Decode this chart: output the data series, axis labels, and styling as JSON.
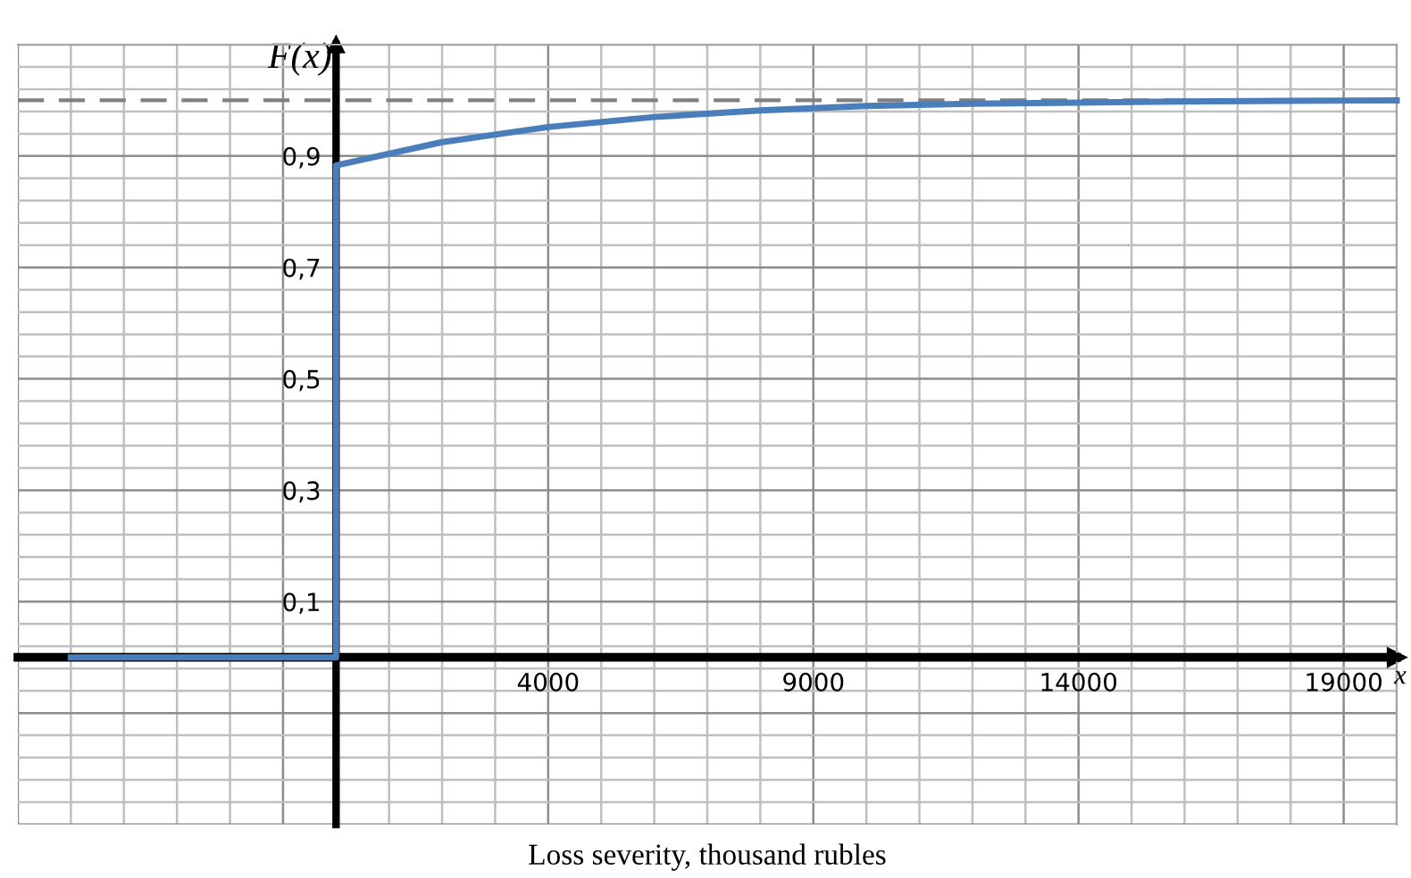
{
  "chart_data": {
    "type": "line",
    "ylabel": "F(x)",
    "xlabel": "Loss severity, thousand rubles",
    "annotations": [
      "x"
    ],
    "series": [
      {
        "color": "#4a7ebb",
        "x": [
          -5000,
          0,
          0,
          2000,
          4000,
          6000,
          8000,
          10000,
          12000,
          14000,
          16000,
          18000,
          20000
        ],
        "values": [
          0,
          0,
          0.883,
          0.925,
          0.952,
          0.97,
          0.982,
          0.99,
          0.994,
          0.996,
          0.998,
          0.999,
          1.0
        ]
      }
    ],
    "xlim": [
      -6000,
      20000
    ],
    "ylim": [
      -0.3,
      1.1
    ],
    "xticks": [
      4000,
      9000,
      14000,
      19000
    ],
    "yticks": [
      {
        "value": 0.1,
        "label": "0,1"
      },
      {
        "value": 0.3,
        "label": "0,3"
      },
      {
        "value": 0.5,
        "label": "0,5"
      },
      {
        "value": 0.7,
        "label": "0,7"
      },
      {
        "value": 0.9,
        "label": "0,9"
      }
    ],
    "ref_lines": [
      {
        "axis": "y",
        "value": 1.0,
        "color": "#808080",
        "line_style": "dashed"
      }
    ],
    "grid": true,
    "marker": "none",
    "line_style": "solid"
  }
}
